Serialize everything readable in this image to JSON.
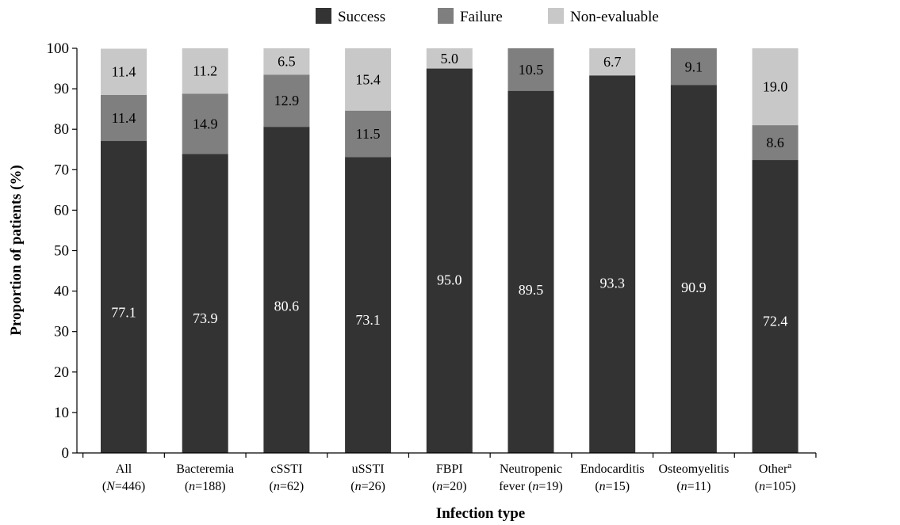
{
  "chart_data": {
    "type": "bar",
    "stacked": true,
    "xlabel": "Infection type",
    "ylabel": "Proportion of patients (%)",
    "ylim": [
      0,
      100
    ],
    "yticks": [
      0,
      10,
      20,
      30,
      40,
      50,
      60,
      70,
      80,
      90,
      100
    ],
    "grid": false,
    "legend_position": "top-center",
    "categories": [
      {
        "name": "All",
        "n_prefix": "(",
        "n_var": "N",
        "n_rest": "=446)"
      },
      {
        "name": "Bacteremia",
        "n_prefix": "(",
        "n_var": "n",
        "n_rest": "=188)"
      },
      {
        "name": "cSSTI",
        "n_prefix": "(",
        "n_var": "n",
        "n_rest": "=62)"
      },
      {
        "name": "uSSTI",
        "n_prefix": "(",
        "n_var": "n",
        "n_rest": "=26)"
      },
      {
        "name": "FBPI",
        "n_prefix": "(",
        "n_var": "n",
        "n_rest": "=20)"
      },
      {
        "name": "Neutropenic",
        "n_prefix": "fever  (",
        "n_var": "n",
        "n_rest": "=19)"
      },
      {
        "name": "Endocarditis",
        "n_prefix": "(",
        "n_var": "n",
        "n_rest": "=15)"
      },
      {
        "name": "Osteomyelitis",
        "n_prefix": "(",
        "n_var": "n",
        "n_rest": "=11)"
      },
      {
        "name": "Other",
        "name_sup": "a",
        "n_prefix": "(",
        "n_var": "n",
        "n_rest": "=105)"
      }
    ],
    "series": [
      {
        "name": "Success",
        "color": "#333333",
        "label_color": "#ffffff",
        "values": [
          77.1,
          73.9,
          80.6,
          73.1,
          95.0,
          89.5,
          93.3,
          90.9,
          72.4
        ],
        "labels": [
          "77.1",
          "73.9",
          "80.6",
          "73.1",
          "95.0",
          "89.5",
          "93.3",
          "90.9",
          "72.4"
        ]
      },
      {
        "name": "Failure",
        "color": "#7f7f7f",
        "label_color": "#000000",
        "values": [
          11.4,
          14.9,
          12.9,
          11.5,
          0,
          10.5,
          0,
          9.1,
          8.6
        ],
        "labels": [
          "11.4",
          "14.9",
          "12.9",
          "11.5",
          "",
          "10.5",
          "",
          "9.1",
          "8.6"
        ]
      },
      {
        "name": "Non-evaluable",
        "color": "#c8c8c8",
        "label_color": "#000000",
        "values": [
          11.4,
          11.2,
          6.5,
          15.4,
          5.0,
          0,
          6.7,
          0,
          19.0
        ],
        "labels": [
          "11.4",
          "11.2",
          "6.5",
          "15.4",
          "5.0",
          "",
          "6.7",
          "",
          "19.0"
        ]
      }
    ]
  }
}
